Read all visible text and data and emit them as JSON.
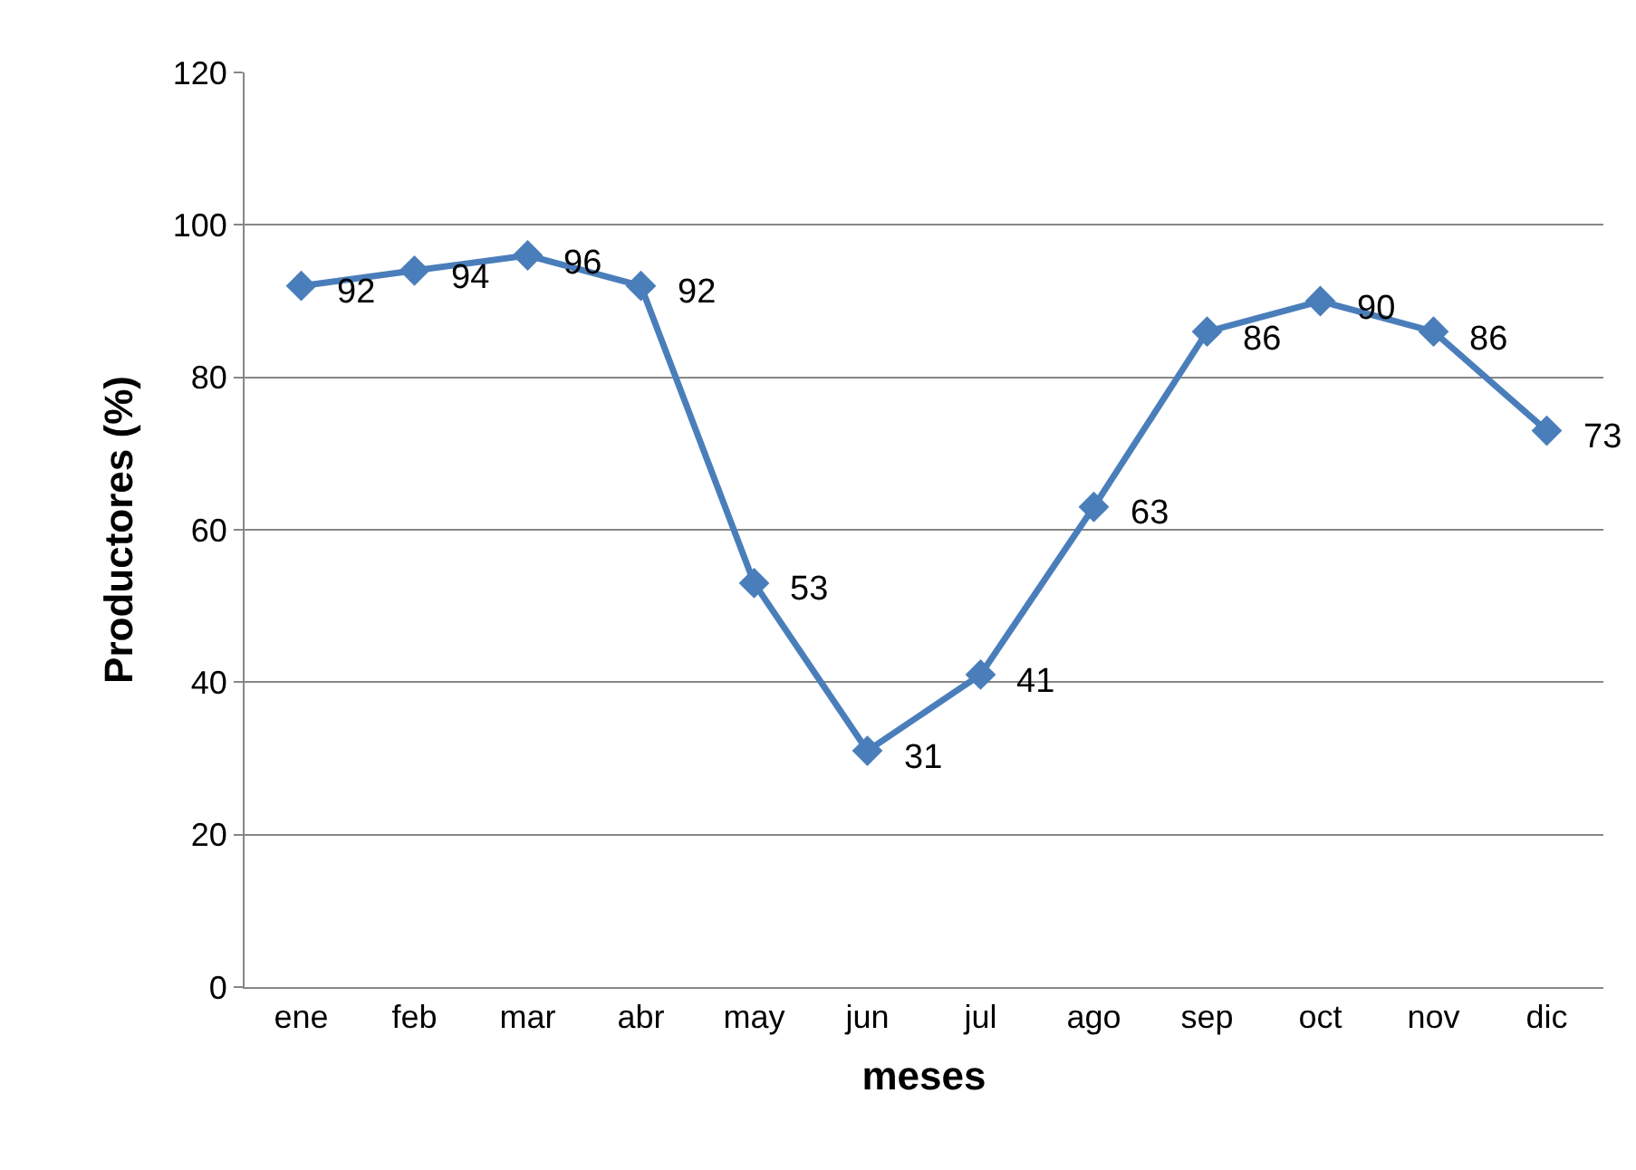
{
  "chart_data": {
    "type": "line",
    "xlabel": "meses",
    "ylabel": "Productores (%)",
    "categories": [
      "ene",
      "feb",
      "mar",
      "abr",
      "may",
      "jun",
      "jul",
      "ago",
      "sep",
      "oct",
      "nov",
      "dic"
    ],
    "series": [
      {
        "color": "#4a7ebb",
        "values": [
          92,
          94,
          96,
          92,
          53,
          31,
          41,
          63,
          86,
          90,
          86,
          73
        ]
      }
    ],
    "ylim": [
      0,
      120
    ],
    "yticks": [
      0,
      20,
      40,
      60,
      80,
      100,
      120
    ],
    "grid": "y",
    "marker": "diamond",
    "line_style": "solid",
    "data_labels": true
  }
}
